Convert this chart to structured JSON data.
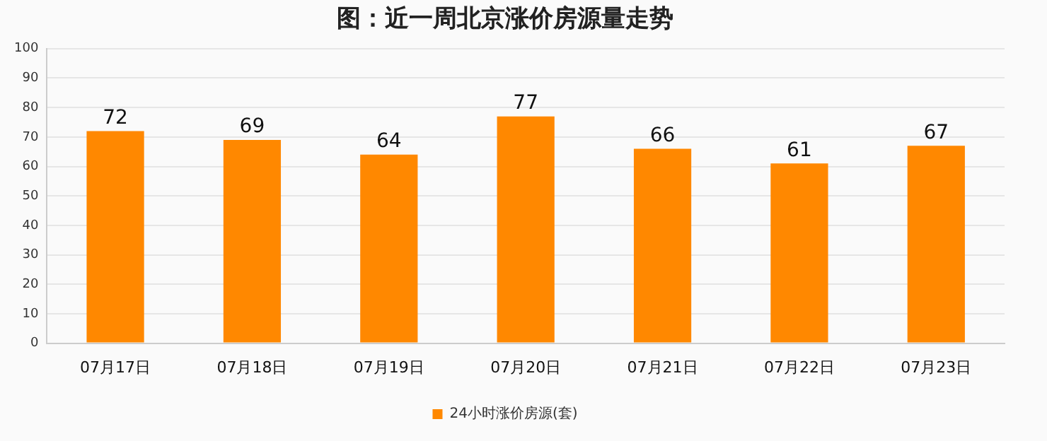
{
  "chart_data": {
    "type": "bar",
    "title": "图：近一周北京涨价房源量走势",
    "categories": [
      "07月17日",
      "07月18日",
      "07月19日",
      "07月20日",
      "07月21日",
      "07月22日",
      "07月23日"
    ],
    "series": [
      {
        "name": "24小时涨价房源(套)",
        "color": "#ff8800",
        "values": [
          72,
          69,
          64,
          77,
          66,
          61,
          67
        ]
      }
    ],
    "ylim": [
      0,
      100
    ],
    "yticks": [
      0,
      10,
      20,
      30,
      40,
      50,
      60,
      70,
      80,
      90,
      100
    ],
    "grid": "y",
    "legend": "bottom",
    "data_labels": true
  }
}
